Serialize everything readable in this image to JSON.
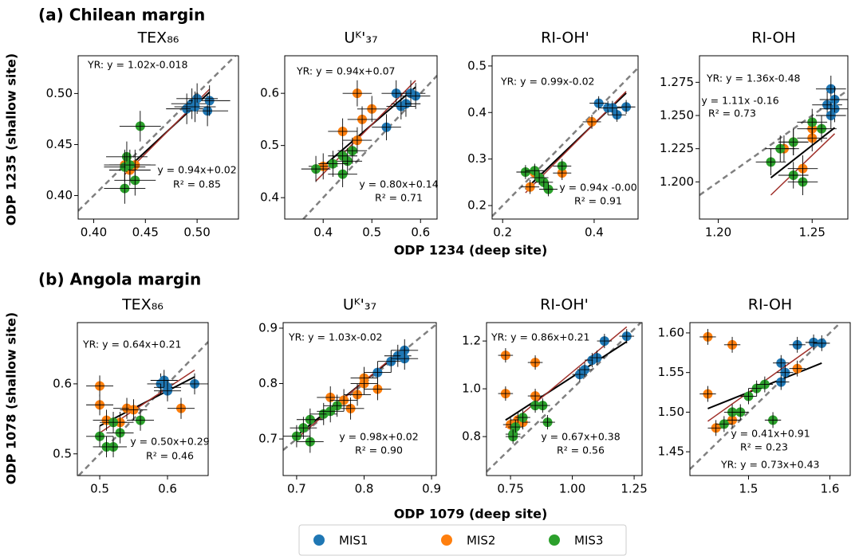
{
  "sections": [
    {
      "title": "(a) Chilean margin",
      "y_label": "ODP 1235 (shallow site)",
      "x_label": "ODP 1234 (deep site)"
    },
    {
      "title": "(b) Angola margin",
      "y_label": "ODP 1078 (shallow site)",
      "x_label": "ODP 1079 (deep site)"
    }
  ],
  "legend": [
    {
      "name": "MIS1",
      "color": "#1f77b4"
    },
    {
      "name": "MIS2",
      "color": "#ff7f0e"
    },
    {
      "name": "MIS3",
      "color": "#2ca02c"
    }
  ],
  "chart_data": [
    {
      "type": "scatter",
      "title": "TEX₈₆",
      "xlim": [
        0.385,
        0.54
      ],
      "ylim": [
        0.377,
        0.537
      ],
      "xticks": [
        {
          "value": 0.4,
          "label": "0.40"
        },
        0.45,
        {
          "value": 0.5,
          "label": "0.50"
        }
      ],
      "yticks": [
        {
          "value": 0.4,
          "label": "0.40"
        },
        0.45,
        {
          "value": 0.5,
          "label": "0.50"
        }
      ],
      "xerr": 0.02,
      "yerr": 0.015,
      "series": [
        {
          "x": [
            0.49,
            0.495,
            0.51,
            0.512,
            0.5,
            0.498
          ],
          "y": [
            0.485,
            0.49,
            0.483,
            0.493,
            0.495,
            0.487
          ]
        },
        {
          "x": [
            0.44,
            0.435,
            0.43
          ],
          "y": [
            0.43,
            0.425,
            0.43
          ]
        },
        {
          "x": [
            0.445,
            0.432,
            0.43,
            0.43,
            0.44,
            0.435
          ],
          "y": [
            0.468,
            0.438,
            0.428,
            0.407,
            0.415,
            0.43
          ]
        }
      ],
      "fits": [
        {
          "color": "#000000",
          "slope": 0.94,
          "intercept": 0.02
        },
        {
          "color": "#a0302a",
          "slope": 1.02,
          "intercept": -0.018
        }
      ],
      "yr_label": "YR: y = 1.02x-0.018",
      "fit_label": "y = 0.94x+0.02",
      "r2_label": "R² = 0.85"
    },
    {
      "type": "scatter",
      "title": "Uᴷ'₃₇",
      "xlim": [
        0.321,
        0.634
      ],
      "ylim": [
        0.359,
        0.672
      ],
      "xticks": [
        0.4,
        0.5,
        0.6
      ],
      "yticks": [
        0.4,
        0.5,
        0.6
      ],
      "xerr": 0.03,
      "yerr": 0.025,
      "series": [
        {
          "x": [
            0.55,
            0.58,
            0.57,
            0.59,
            0.53,
            0.56
          ],
          "y": [
            0.6,
            0.6,
            0.58,
            0.595,
            0.535,
            0.575
          ]
        },
        {
          "x": [
            0.47,
            0.48,
            0.44,
            0.5,
            0.47,
            0.4
          ],
          "y": [
            0.6,
            0.55,
            0.527,
            0.57,
            0.51,
            0.46
          ]
        },
        {
          "x": [
            0.385,
            0.44,
            0.45,
            0.44,
            0.42,
            0.46
          ],
          "y": [
            0.455,
            0.48,
            0.47,
            0.445,
            0.465,
            0.49
          ]
        }
      ],
      "fits": [
        {
          "color": "#000000",
          "slope": 0.8,
          "intercept": 0.14
        },
        {
          "color": "#a0302a",
          "slope": 0.94,
          "intercept": 0.07
        }
      ],
      "yr_label": "YR: y = 0.94x+0.07",
      "fit_label": "y = 0.80x+0.14",
      "r2_label": "R² = 0.71"
    },
    {
      "type": "scatter",
      "title": "RI-OH'",
      "xlim": [
        0.177,
        0.496
      ],
      "ylim": [
        0.171,
        0.522
      ],
      "xticks": [
        0.2,
        0.4
      ],
      "yticks": [
        0.2,
        0.3,
        0.4,
        0.5
      ],
      "xerr": 0.02,
      "yerr": 0.015,
      "series": [
        {
          "x": [
            0.41,
            0.43,
            0.45,
            0.47,
            0.44
          ],
          "y": [
            0.42,
            0.41,
            0.395,
            0.412,
            0.41
          ]
        },
        {
          "x": [
            0.395,
            0.33,
            0.26,
            0.27
          ],
          "y": [
            0.38,
            0.27,
            0.24,
            0.27
          ]
        },
        {
          "x": [
            0.25,
            0.27,
            0.29,
            0.3,
            0.33,
            0.28
          ],
          "y": [
            0.272,
            0.275,
            0.25,
            0.235,
            0.285,
            0.26
          ]
        }
      ],
      "fits": [
        {
          "color": "#000000",
          "slope": 0.94,
          "intercept": 0
        },
        {
          "color": "#a0302a",
          "slope": 0.99,
          "intercept": -0.02
        }
      ],
      "yr_label": "YR: y = 0.99x-0.02",
      "fit_label": "y = 0.94x -0.00",
      "r2_label": "R² = 0.91"
    },
    {
      "type": "scatter",
      "title": "RI-OH",
      "xlim": [
        1.19,
        1.269
      ],
      "ylim": [
        1.172,
        1.295
      ],
      "xticks": [
        {
          "value": 1.2,
          "label": "1.20"
        },
        1.25
      ],
      "yticks": [
        {
          "value": 1.2,
          "label": "1.200"
        },
        1.225,
        {
          "value": 1.25,
          "label": "1.250"
        },
        1.275
      ],
      "xerr": 0.008,
      "yerr": 0.01,
      "series": [
        {
          "x": [
            1.26,
            1.258,
            1.262,
            1.262,
            1.26
          ],
          "y": [
            1.27,
            1.258,
            1.262,
            1.255,
            1.25
          ]
        },
        {
          "x": [
            1.25,
            1.25,
            1.24,
            1.235,
            1.245
          ],
          "y": [
            1.24,
            1.233,
            1.23,
            1.225,
            1.21
          ]
        },
        {
          "x": [
            1.228,
            1.233,
            1.24,
            1.24,
            1.245,
            1.25,
            1.255
          ],
          "y": [
            1.215,
            1.225,
            1.23,
            1.205,
            1.2,
            1.245,
            1.24
          ]
        }
      ],
      "fits": [
        {
          "color": "#000000",
          "slope": 1.11,
          "intercept": -0.16
        },
        {
          "color": "#a0302a",
          "slope": 1.36,
          "intercept": -0.48
        }
      ],
      "yr_label": "YR: y = 1.36x-0.48",
      "fit_label": "y = 1.11x -0.16",
      "r2_label": "R² = 0.73"
    },
    {
      "type": "scatter",
      "title": "TEX₈₆",
      "xlim": [
        0.467,
        0.66
      ],
      "ylim": [
        0.469,
        0.6875
      ],
      "xticks": [
        0.5,
        0.6
      ],
      "yticks": [
        0.5,
        0.6
      ],
      "xerr": 0.02,
      "yerr": 0.015,
      "series": [
        {
          "x": [
            0.59,
            0.6,
            0.64,
            0.595,
            0.6
          ],
          "y": [
            0.6,
            0.595,
            0.6,
            0.605,
            0.59
          ]
        },
        {
          "x": [
            0.5,
            0.5,
            0.51,
            0.54,
            0.55,
            0.62,
            0.53
          ],
          "y": [
            0.597,
            0.57,
            0.548,
            0.565,
            0.563,
            0.565,
            0.545
          ]
        },
        {
          "x": [
            0.5,
            0.52,
            0.51,
            0.53,
            0.56,
            0.52
          ],
          "y": [
            0.525,
            0.51,
            0.51,
            0.53,
            0.548,
            0.545
          ]
        }
      ],
      "fits": [
        {
          "color": "#000000",
          "slope": 0.5,
          "intercept": 0.29
        },
        {
          "color": "#a0302a",
          "slope": 0.64,
          "intercept": 0.21
        }
      ],
      "yr_label": "YR: y = 0.64x+0.21",
      "fit_label": "y = 0.50x+0.29",
      "r2_label": "R² = 0.46"
    },
    {
      "type": "scatter",
      "title": "Uᴷ'₃₇",
      "xlim": [
        0.68,
        0.907
      ],
      "ylim": [
        0.634,
        0.91
      ],
      "xticks": [
        0.7,
        0.8,
        0.9
      ],
      "yticks": [
        0.7,
        0.8,
        0.9
      ],
      "xerr": 0.02,
      "yerr": 0.02,
      "series": [
        {
          "x": [
            0.85,
            0.86,
            0.84,
            0.86,
            0.82
          ],
          "y": [
            0.85,
            0.86,
            0.84,
            0.845,
            0.82
          ]
        },
        {
          "x": [
            0.8,
            0.79,
            0.82,
            0.78,
            0.75,
            0.77,
            0.8
          ],
          "y": [
            0.8,
            0.78,
            0.79,
            0.755,
            0.775,
            0.77,
            0.81
          ]
        },
        {
          "x": [
            0.7,
            0.72,
            0.72,
            0.74,
            0.76,
            0.71,
            0.75
          ],
          "y": [
            0.705,
            0.695,
            0.735,
            0.745,
            0.76,
            0.72,
            0.75
          ]
        }
      ],
      "fits": [
        {
          "color": "#000000",
          "slope": 0.98,
          "intercept": 0.02
        },
        {
          "color": "#a0302a",
          "slope": 1.03,
          "intercept": -0.02
        }
      ],
      "yr_label": "YR: y = 1.03x-0.02",
      "fit_label": "y = 0.98x+0.02",
      "r2_label": "R² = 0.90"
    },
    {
      "type": "scatter",
      "title": "RI-OH'",
      "xlim": [
        0.653,
        1.282
      ],
      "ylim": [
        0.637,
        1.277
      ],
      "xticks": [
        0.75,
        {
          "value": 1,
          "label": "1.00"
        },
        1.25
      ],
      "yticks": [
        {
          "value": 0.8,
          "label": "0.8"
        },
        {
          "value": 1,
          "label": "1.0"
        },
        {
          "value": 1.2,
          "label": "1.2"
        }
      ],
      "xerr": 0.03,
      "yerr": 0.03,
      "series": [
        {
          "x": [
            1.03,
            1.05,
            1.08,
            1.13,
            1.22,
            1.1
          ],
          "y": [
            1.06,
            1.08,
            1.12,
            1.2,
            1.22,
            1.13
          ]
        },
        {
          "x": [
            0.73,
            0.73,
            0.85,
            0.85,
            0.8,
            0.75,
            0.78
          ],
          "y": [
            1.14,
            0.98,
            1.11,
            0.97,
            0.86,
            0.85,
            0.87
          ]
        },
        {
          "x": [
            0.76,
            0.77,
            0.8,
            0.85,
            0.88,
            0.9,
            0.76
          ],
          "y": [
            0.81,
            0.84,
            0.88,
            0.93,
            0.93,
            0.86,
            0.8
          ]
        }
      ],
      "fits": [
        {
          "color": "#000000",
          "slope": 0.67,
          "intercept": 0.38
        },
        {
          "color": "#a0302a",
          "slope": 0.86,
          "intercept": 0.21
        }
      ],
      "yr_label": "YR: y = 0.86x+0.21",
      "fit_label": "y = 0.67x+0.38",
      "r2_label": "R² = 0.56"
    },
    {
      "type": "scatter",
      "title": "RI-OH",
      "xlim": [
        1.428,
        1.625
      ],
      "ylim": [
        1.42,
        1.613
      ],
      "xticks": [
        1.5,
        1.6
      ],
      "yticks": [
        1.45,
        {
          "value": 1.5,
          "label": "1.50"
        },
        1.55,
        {
          "value": 1.6,
          "label": "1.60"
        }
      ],
      "xerr": 0.01,
      "yerr": 0.01,
      "series": [
        {
          "x": [
            1.58,
            1.56,
            1.54,
            1.54,
            1.59,
            1.545
          ],
          "y": [
            1.588,
            1.585,
            1.562,
            1.538,
            1.587,
            1.55
          ]
        },
        {
          "x": [
            1.45,
            1.48,
            1.45,
            1.56,
            1.46,
            1.48
          ],
          "y": [
            1.595,
            1.585,
            1.523,
            1.555,
            1.48,
            1.49
          ]
        },
        {
          "x": [
            1.47,
            1.48,
            1.5,
            1.51,
            1.52,
            1.53,
            1.49
          ],
          "y": [
            1.485,
            1.5,
            1.52,
            1.53,
            1.535,
            1.49,
            1.5
          ]
        }
      ],
      "fits": [
        {
          "color": "#000000",
          "slope": 0.41,
          "intercept": 0.91
        },
        {
          "color": "#a0302a",
          "slope": 0.73,
          "intercept": 0.43
        }
      ],
      "yr_label": "YR: y = 0.73x+0.43",
      "fit_label": "y = 0.41x+0.91",
      "r2_label": "R² = 0.23"
    }
  ]
}
